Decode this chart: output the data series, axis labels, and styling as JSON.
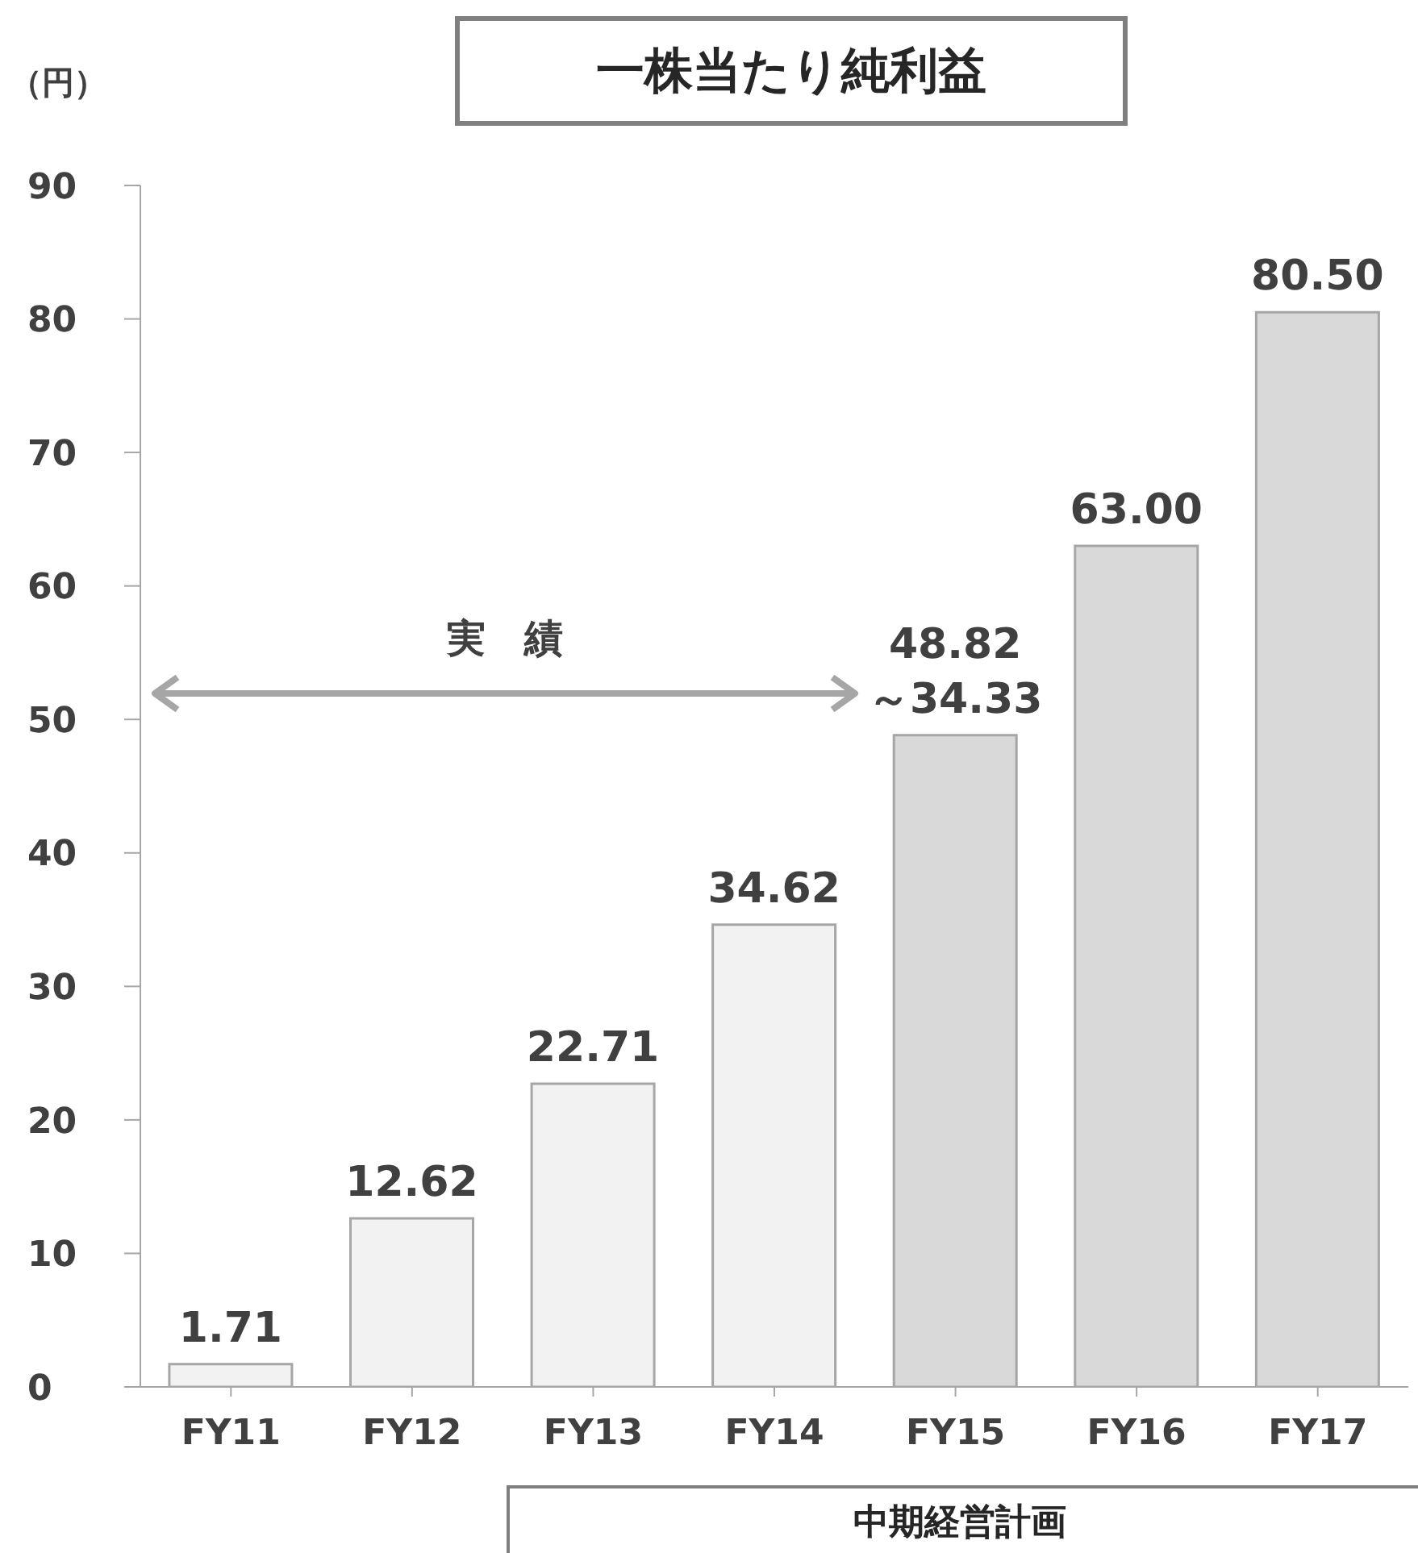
{
  "chart_data": {
    "type": "bar",
    "title": "一株当たり純利益",
    "ylabel": "（円）",
    "categories": [
      "FY11",
      "FY12",
      "FY13",
      "FY14",
      "FY15",
      "FY16",
      "FY17"
    ],
    "values": [
      1.71,
      12.62,
      22.71,
      34.62,
      48.82,
      63.0,
      80.5
    ],
    "colors": [
      "#f2f2f2",
      "#f2f2f2",
      "#f2f2f2",
      "#f2f2f2",
      "#d9d9d9",
      "#d9d9d9",
      "#d9d9d9"
    ],
    "value_labels": [
      "1.71",
      "12.62",
      "22.71",
      "34.62",
      "48.82\n～34.33",
      "63.00",
      "80.50"
    ],
    "ylim": [
      0,
      90
    ],
    "yticks": [
      0,
      10,
      20,
      30,
      40,
      50,
      60,
      70,
      80,
      90
    ],
    "annotations": [
      "実　績",
      "中期経営計画"
    ],
    "grid": false,
    "legend": false
  }
}
